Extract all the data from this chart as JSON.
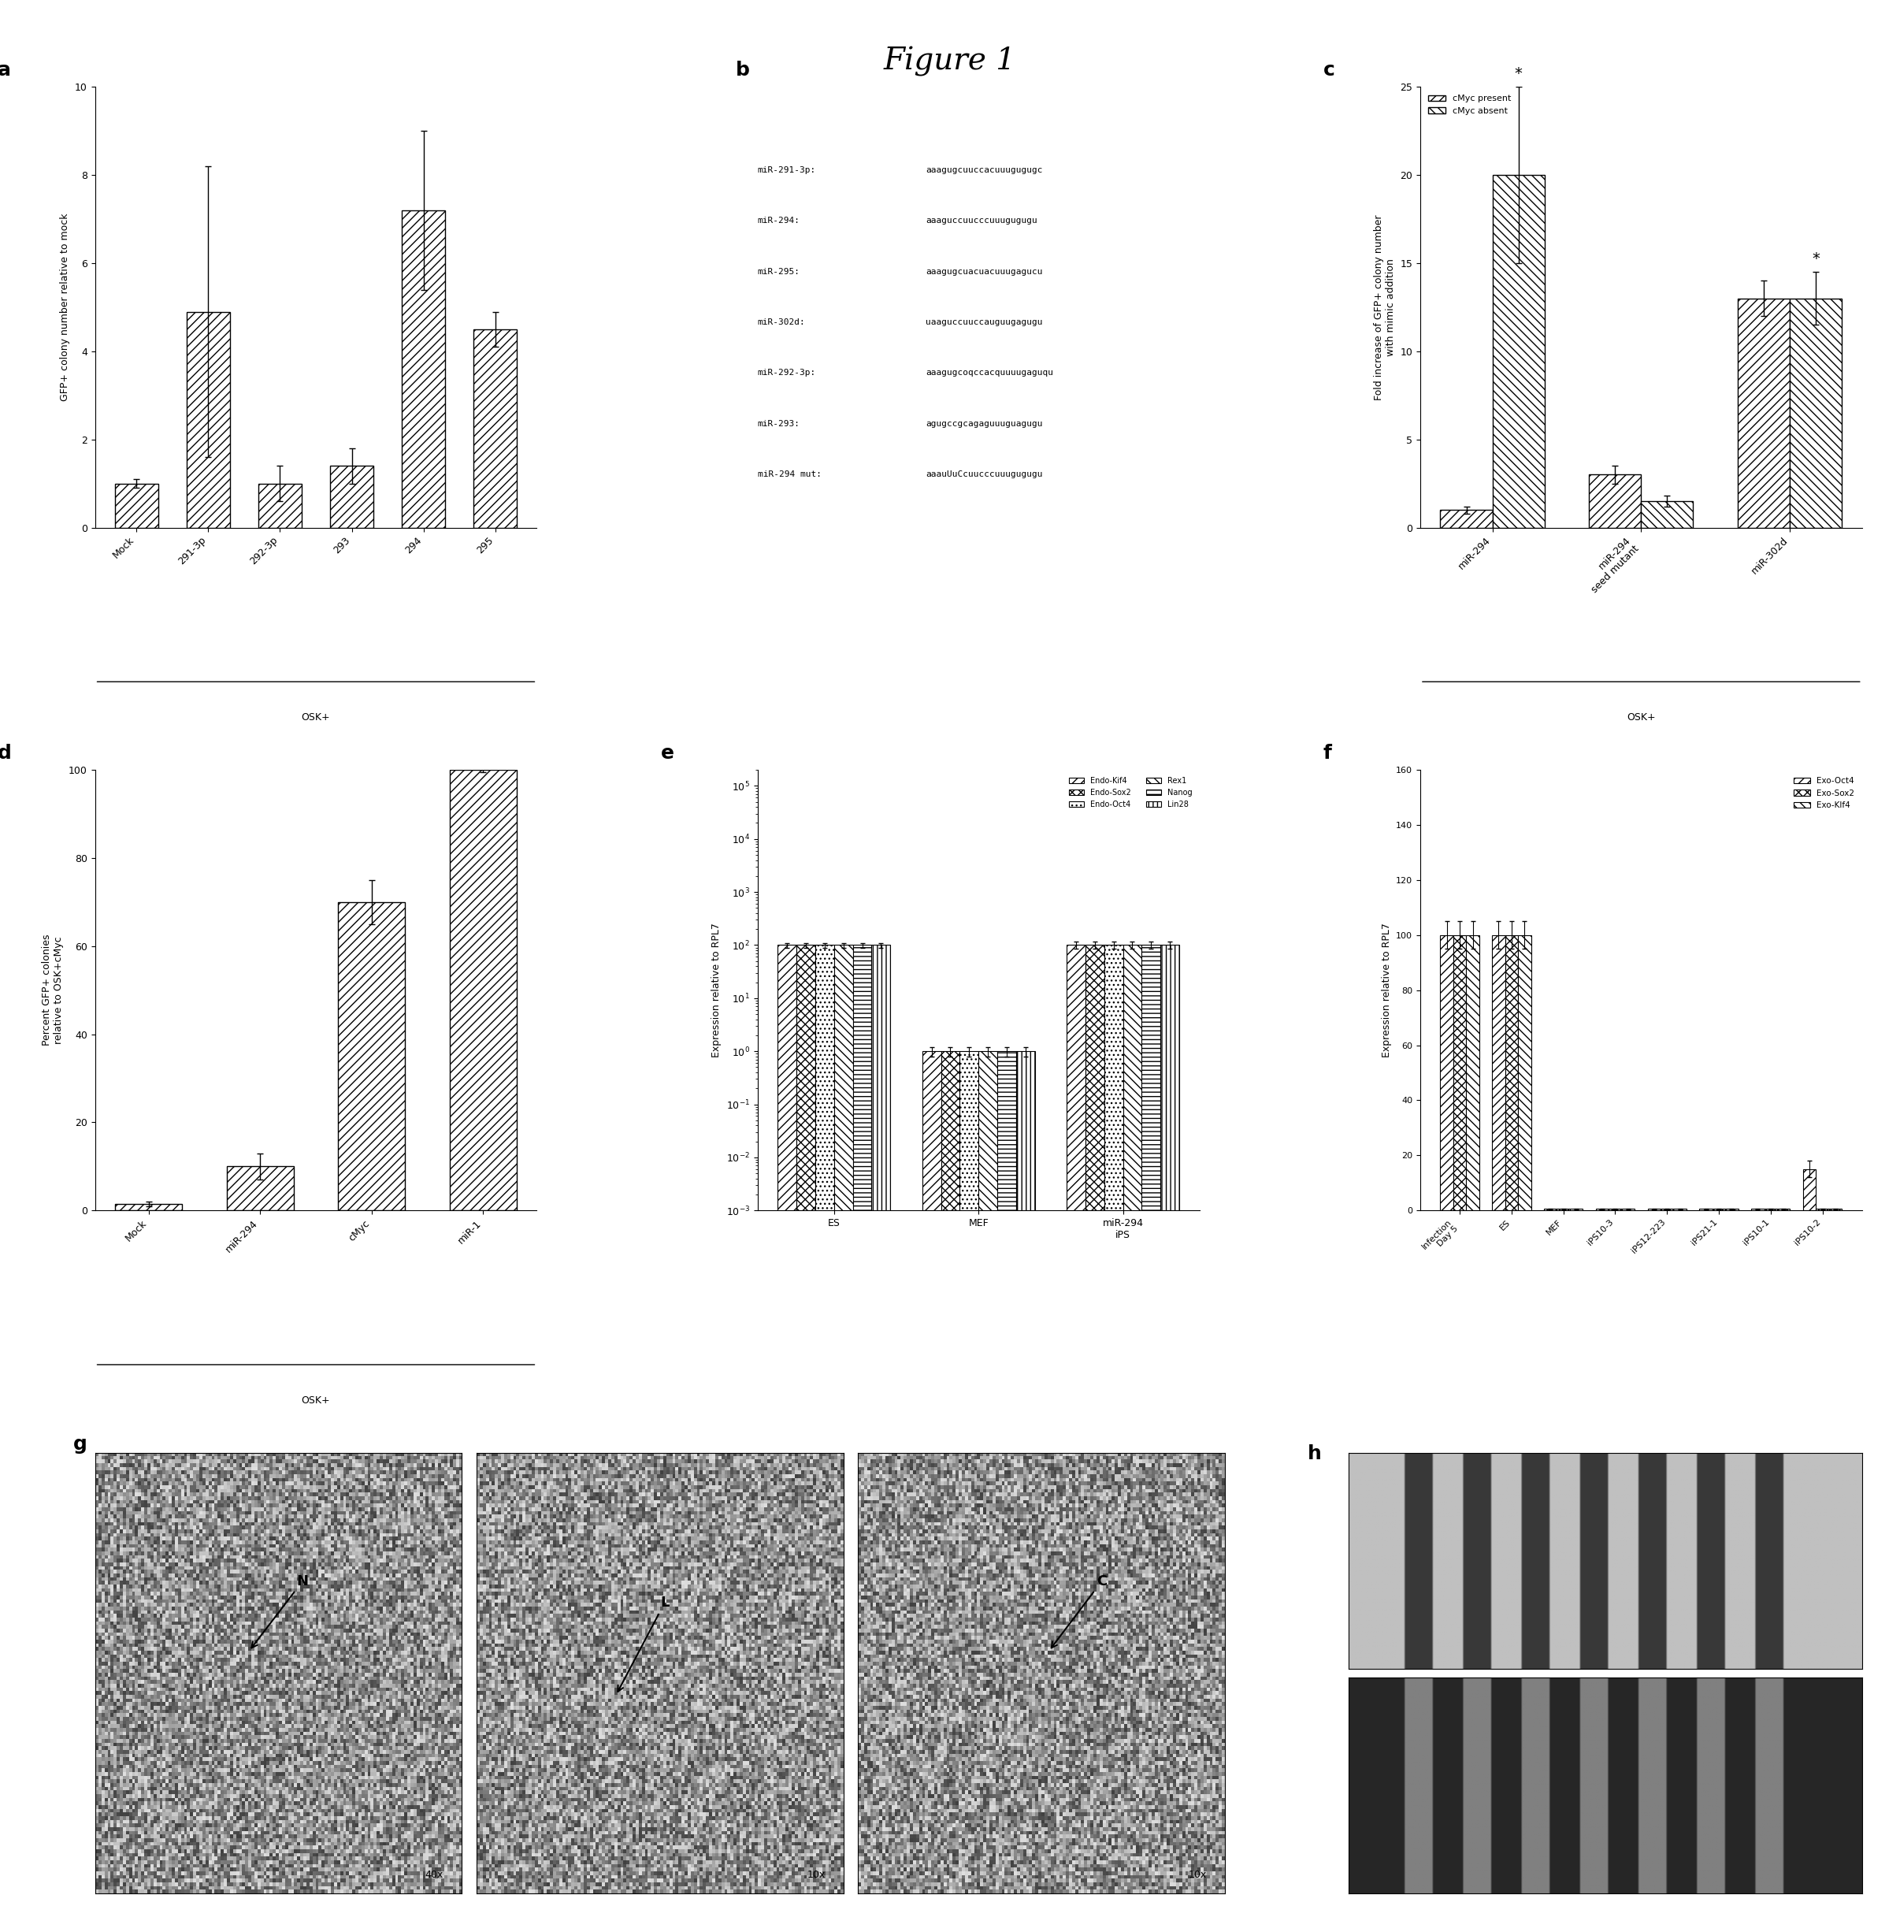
{
  "title": "Figure 1",
  "panel_a": {
    "categories": [
      "Mock",
      "291-3p",
      "292-3p",
      "293",
      "294",
      "295"
    ],
    "values": [
      1.0,
      4.9,
      1.0,
      1.4,
      7.2,
      4.5
    ],
    "errors": [
      0.1,
      3.3,
      0.4,
      0.4,
      1.8,
      0.4
    ],
    "ylabel": "GFP+ colony number relative to mock",
    "ylim": [
      0,
      10
    ],
    "yticks": [
      0,
      2,
      4,
      6,
      8,
      10
    ]
  },
  "panel_c": {
    "categories": [
      "miR-294",
      "miR-294\nseed mutant",
      "miR-302d"
    ],
    "values_present": [
      1.0,
      3.0,
      13.0
    ],
    "values_absent": [
      20.0,
      1.5,
      13.0
    ],
    "errors_present": [
      0.2,
      0.5,
      1.0
    ],
    "errors_absent": [
      5.0,
      0.3,
      1.5
    ],
    "ylabel": "Fold increase of GFP+ colony number\nwith mimic addition",
    "ylim": [
      0,
      25
    ],
    "yticks": [
      0,
      5,
      10,
      15,
      20,
      25
    ],
    "legend": [
      "cMyc present",
      "cMyc absent"
    ]
  },
  "panel_d": {
    "bar_cats": [
      "Mock",
      "miR-294",
      "cMyc",
      "miR-1"
    ],
    "bar_values": [
      1.5,
      10.0,
      70.0,
      100.0
    ],
    "bar_errors": [
      0.5,
      3.0,
      5.0,
      0.5
    ],
    "ylabel": "Percent GFP+ colonies\nrelative to OSK+cMyc",
    "ylim": [
      0,
      100
    ],
    "yticks": [
      0,
      20,
      40,
      60,
      80,
      100
    ]
  },
  "panel_e": {
    "groups": [
      "ES",
      "MEF",
      "miR-294\niPS"
    ],
    "series": [
      "Endo-Kif4",
      "Endo-Sox2",
      "Endo-Oct4",
      "Rex1",
      "Nanog",
      "Lin28"
    ],
    "values_ES": [
      100,
      100,
      100,
      100,
      100,
      100
    ],
    "values_MEF": [
      1,
      1,
      1,
      1,
      1,
      1
    ],
    "values_iPS": [
      100,
      100,
      100,
      100,
      100,
      100
    ],
    "errors_ES": [
      10,
      10,
      10,
      10,
      10,
      10
    ],
    "errors_MEF": [
      0.2,
      0.2,
      0.2,
      0.2,
      0.2,
      0.2
    ],
    "errors_iPS": [
      15,
      15,
      15,
      15,
      15,
      15
    ],
    "ylabel": "Expression relative to RPL7"
  },
  "panel_f": {
    "categories": [
      "Infection\nDay 5",
      "ES",
      "MEF",
      "iPS10-3",
      "iPS12-223",
      "iPS21-1",
      "iPS10-1",
      "iPS10-2"
    ],
    "series": [
      "Exo-Oct4",
      "Exo-Sox2",
      "Exo-Klf4"
    ],
    "values_oct4": [
      100,
      100,
      0.5,
      0.5,
      0.5,
      0.5,
      0.5,
      15
    ],
    "values_sox2": [
      100,
      100,
      0.5,
      0.5,
      0.5,
      0.5,
      0.5,
      0.5
    ],
    "values_klf4": [
      100,
      100,
      0.5,
      0.5,
      0.5,
      0.5,
      0.5,
      0.5
    ],
    "errors_oct4": [
      5,
      5,
      0.1,
      0.1,
      0.1,
      0.1,
      0.1,
      3
    ],
    "errors_sox2": [
      5,
      5,
      0.1,
      0.1,
      0.1,
      0.1,
      0.1,
      0.1
    ],
    "errors_klf4": [
      5,
      5,
      0.1,
      0.1,
      0.1,
      0.1,
      0.1,
      0.1
    ],
    "ylabel": "Expression relative to RPL7",
    "ylim": [
      0,
      160
    ],
    "yticks": [
      0,
      20,
      40,
      60,
      80,
      100,
      120,
      140,
      160
    ]
  },
  "panel_b_lines": [
    [
      "miR-291-3p:",
      "a",
      "aagugcu",
      "uccacuuugugug",
      "c"
    ],
    [
      "miR-294:",
      "a",
      "aaguccu",
      "ucccuuugugugu",
      ""
    ],
    [
      "miR-295:",
      "a",
      "aagugcu",
      "acuacuuugagucu",
      ""
    ],
    [
      "miR-302d:",
      "u",
      "aaguccu",
      "uccauguugagugu",
      ""
    ],
    [
      "miR-292-3p:",
      "a",
      "aagugco",
      "qccacquuuugaguqu",
      ""
    ],
    [
      "miR-293:",
      "a",
      "gugccgc",
      "agaguuuguagugu",
      ""
    ],
    [
      "miR-294 mut:",
      "a",
      "aauUuCcuu",
      "cccuuugugugu",
      ""
    ]
  ]
}
